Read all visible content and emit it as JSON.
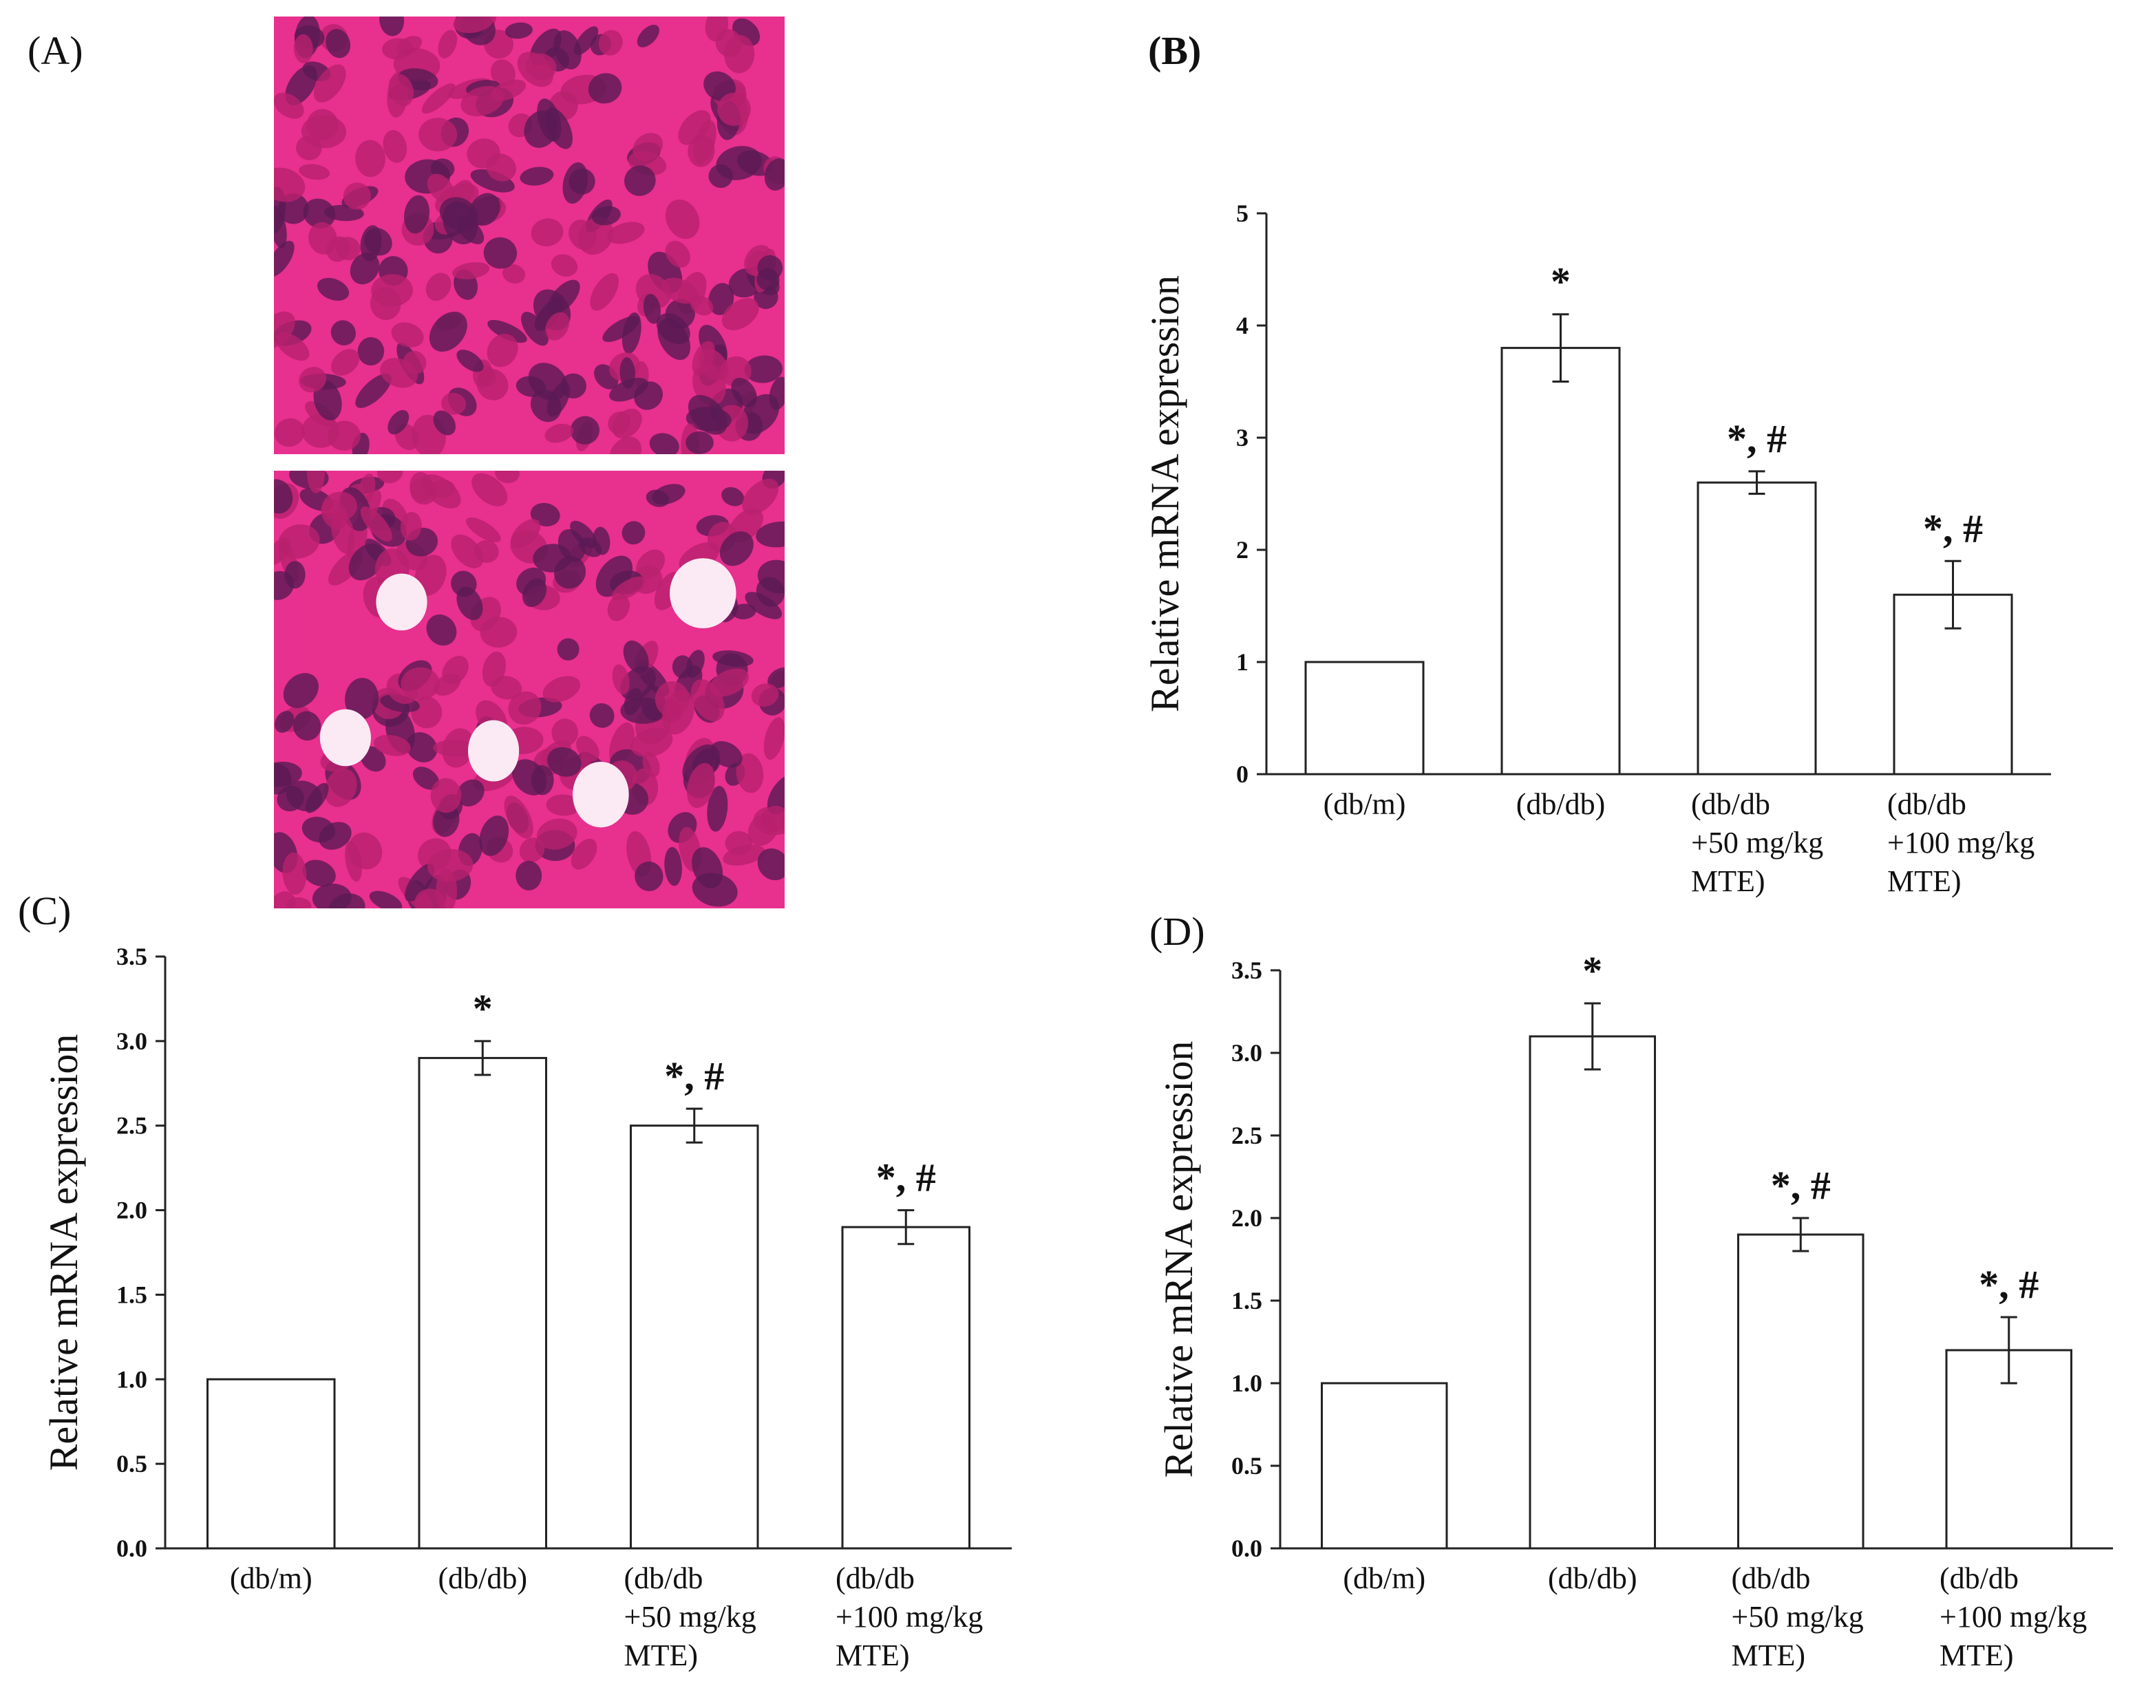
{
  "panels": {
    "A": {
      "label": "(A)"
    },
    "B": {
      "label": "(B)"
    },
    "C": {
      "label": "(C)"
    },
    "D": {
      "label": "(D)"
    }
  },
  "histology": {
    "colors": {
      "background": "#e8308e",
      "cell": "#b8206e",
      "nucleus": "#5a1a55",
      "void": "#fbeaf3"
    },
    "top_image": {
      "has_vacuoles": false
    },
    "bottom_image": {
      "has_vacuoles": true
    }
  },
  "chart_data": [
    {
      "panel": "B",
      "type": "bar",
      "ylabel": "Relative  mRNA expression",
      "ylim": [
        0,
        5
      ],
      "yticks": [
        "0",
        "1",
        "2",
        "3",
        "4",
        "5"
      ],
      "categories": [
        [
          "(db/m)"
        ],
        [
          "(db/db)"
        ],
        [
          "(db/db",
          "+50 mg/kg",
          "MTE)"
        ],
        [
          "(db/db",
          "+100 mg/kg",
          "MTE)"
        ]
      ],
      "values": [
        1.0,
        3.8,
        2.6,
        1.6
      ],
      "errors": [
        0,
        0.3,
        0.1,
        0.3
      ],
      "annotations": [
        "",
        "*",
        "*, #",
        "*, #"
      ]
    },
    {
      "panel": "C",
      "type": "bar",
      "ylabel": "Relative  mRNA expression",
      "ylim": [
        0,
        3.5
      ],
      "yticks": [
        "0.0",
        "0.5",
        "1.0",
        "1.5",
        "2.0",
        "2.5",
        "3.0",
        "3.5"
      ],
      "categories": [
        [
          "(db/m)"
        ],
        [
          "(db/db)"
        ],
        [
          "(db/db",
          "+50 mg/kg",
          "MTE)"
        ],
        [
          "(db/db",
          "+100 mg/kg",
          "MTE)"
        ]
      ],
      "values": [
        1.0,
        2.9,
        2.5,
        1.9
      ],
      "errors": [
        0,
        0.1,
        0.1,
        0.1
      ],
      "annotations": [
        "",
        "*",
        "*, #",
        "*, #"
      ]
    },
    {
      "panel": "D",
      "type": "bar",
      "ylabel": "Relative  mRNA expression",
      "ylim": [
        0,
        3.5
      ],
      "yticks": [
        "0.0",
        "0.5",
        "1.0",
        "1.5",
        "2.0",
        "2.5",
        "3.0",
        "3.5"
      ],
      "categories": [
        [
          "(db/m)"
        ],
        [
          "(db/db)"
        ],
        [
          "(db/db",
          "+50 mg/kg",
          "MTE)"
        ],
        [
          "(db/db",
          "+100 mg/kg",
          "MTE)"
        ]
      ],
      "values": [
        1.0,
        3.1,
        1.9,
        1.2
      ],
      "errors": [
        0,
        0.2,
        0.1,
        0.2
      ],
      "annotations": [
        "",
        "*",
        "*, #",
        "*, #"
      ]
    }
  ]
}
